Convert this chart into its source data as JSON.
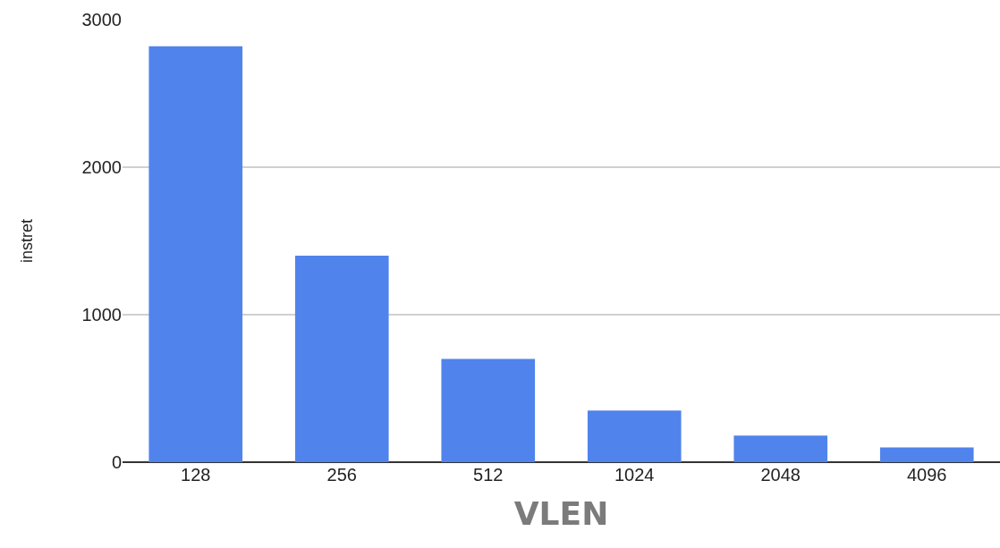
{
  "chart_data": {
    "type": "bar",
    "xlabel": "VLEN",
    "ylabel": "instret",
    "categories": [
      "128",
      "256",
      "512",
      "1024",
      "2048",
      "4096"
    ],
    "values": [
      2820,
      1400,
      700,
      350,
      180,
      100
    ],
    "color": "#5183ec",
    "ylim": [
      0,
      3000
    ],
    "yticks": [
      0,
      1000,
      2000,
      3000
    ],
    "grid": "y",
    "legend": false
  }
}
